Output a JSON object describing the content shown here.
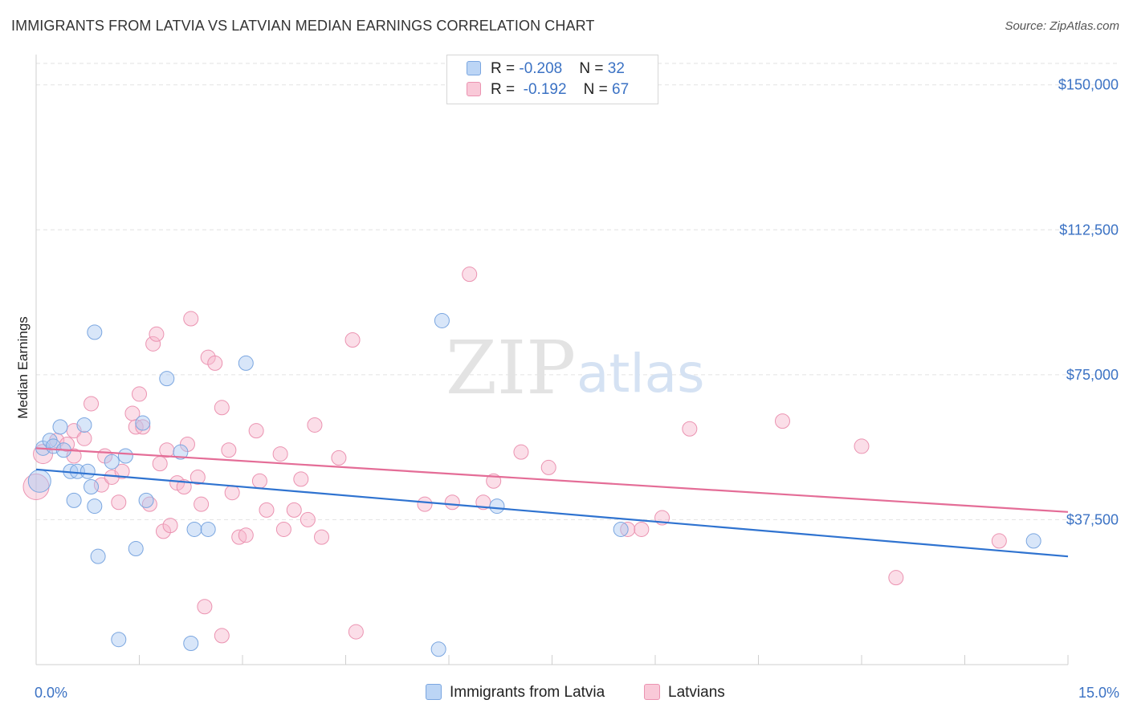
{
  "title": "IMMIGRANTS FROM LATVIA VS LATVIAN MEDIAN EARNINGS CORRELATION CHART",
  "source": "Source: ZipAtlas.com",
  "watermark": {
    "zip": "ZIP",
    "atlas": "atlas"
  },
  "colors": {
    "blue_fill": "#a9c8f2",
    "blue_stroke": "#7aa6e0",
    "blue_line": "#2f73d0",
    "pink_fill": "#f6b6cb",
    "pink_stroke": "#eb93b1",
    "pink_line": "#e46d97",
    "tick_text": "#3b72c4",
    "grid": "#e2e2e2"
  },
  "legend": {
    "rows": [
      {
        "r_label": "R = ",
        "r_value": "-0.208",
        "n_label": "N = ",
        "n_value": "32"
      },
      {
        "r_label": "R = ",
        "r_value": " -0.192",
        "n_label": "N = ",
        "n_value": "67"
      }
    ]
  },
  "bottom_legend": [
    {
      "label": "Immigrants from Latvia"
    },
    {
      "label": "Latvians"
    }
  ],
  "chart_data": {
    "type": "scatter",
    "title": "IMMIGRANTS FROM LATVIA VS LATVIAN MEDIAN EARNINGS CORRELATION CHART",
    "xlabel": "",
    "ylabel": "Median Earnings",
    "xlim": [
      0,
      15
    ],
    "ylim": [
      0,
      157000
    ],
    "x_tick_labels": [
      "0.0%",
      "15.0%"
    ],
    "y_ticks": [
      37500,
      75000,
      112500,
      150000
    ],
    "y_tick_labels": [
      "$37,500",
      "$75,000",
      "$112,500",
      "$150,000"
    ],
    "grid": true,
    "legend_position": "top-center",
    "series": [
      {
        "name": "Immigrants from Latvia",
        "trend": [
          [
            0,
            50500
          ],
          [
            15,
            28000
          ]
        ],
        "points": [
          [
            0.05,
            47500,
            14
          ],
          [
            0.1,
            56000,
            9
          ],
          [
            0.2,
            58000,
            9
          ],
          [
            0.25,
            56500,
            9
          ],
          [
            0.35,
            61500,
            9
          ],
          [
            0.4,
            55500,
            9
          ],
          [
            0.5,
            50000,
            9
          ],
          [
            0.55,
            42500,
            9
          ],
          [
            0.6,
            50000,
            9
          ],
          [
            0.75,
            50000,
            9
          ],
          [
            0.7,
            62000,
            9
          ],
          [
            0.85,
            86000,
            9
          ],
          [
            0.85,
            41000,
            9
          ],
          [
            0.8,
            46000,
            9
          ],
          [
            0.9,
            28000,
            9
          ],
          [
            1.1,
            52500,
            9
          ],
          [
            1.3,
            54000,
            9
          ],
          [
            1.6,
            42500,
            9
          ],
          [
            1.45,
            30000,
            9
          ],
          [
            1.55,
            62500,
            9
          ],
          [
            1.9,
            74000,
            9
          ],
          [
            2.1,
            55000,
            9
          ],
          [
            2.3,
            35000,
            9
          ],
          [
            2.5,
            35000,
            9
          ],
          [
            3.05,
            78000,
            9
          ],
          [
            1.2,
            6500,
            9
          ],
          [
            2.25,
            5500,
            9
          ],
          [
            5.9,
            89000,
            9
          ],
          [
            5.85,
            4000,
            9
          ],
          [
            6.7,
            41000,
            9
          ],
          [
            8.5,
            35000,
            9
          ],
          [
            14.5,
            32000,
            9
          ]
        ]
      },
      {
        "name": "Latvians",
        "trend": [
          [
            0,
            56000
          ],
          [
            15,
            39500
          ]
        ],
        "points": [
          [
            0.0,
            46000,
            16
          ],
          [
            0.1,
            54500,
            12
          ],
          [
            0.3,
            58000,
            9
          ],
          [
            0.45,
            57000,
            9
          ],
          [
            0.55,
            54000,
            9
          ],
          [
            0.55,
            60500,
            9
          ],
          [
            0.7,
            58500,
            9
          ],
          [
            0.8,
            67500,
            9
          ],
          [
            0.95,
            46500,
            9
          ],
          [
            1.0,
            54000,
            9
          ],
          [
            1.1,
            48500,
            9
          ],
          [
            1.2,
            42000,
            9
          ],
          [
            1.4,
            65000,
            9
          ],
          [
            1.45,
            61500,
            9
          ],
          [
            1.5,
            70000,
            9
          ],
          [
            1.55,
            61500,
            9
          ],
          [
            1.7,
            83000,
            9
          ],
          [
            1.85,
            34500,
            9
          ],
          [
            1.75,
            85500,
            9
          ],
          [
            1.65,
            41500,
            9
          ],
          [
            1.8,
            52000,
            9
          ],
          [
            1.9,
            55500,
            9
          ],
          [
            1.95,
            36000,
            9
          ],
          [
            2.05,
            47000,
            9
          ],
          [
            2.15,
            46000,
            9
          ],
          [
            2.2,
            57000,
            9
          ],
          [
            2.25,
            89500,
            9
          ],
          [
            2.4,
            41500,
            9
          ],
          [
            2.5,
            79500,
            9
          ],
          [
            2.6,
            78000,
            9
          ],
          [
            2.45,
            15000,
            9
          ],
          [
            2.7,
            66500,
            9
          ],
          [
            2.8,
            55500,
            9
          ],
          [
            2.85,
            44500,
            9
          ],
          [
            2.7,
            7500,
            9
          ],
          [
            2.95,
            33000,
            9
          ],
          [
            3.05,
            33500,
            9
          ],
          [
            3.2,
            60500,
            9
          ],
          [
            3.25,
            47500,
            9
          ],
          [
            3.35,
            40000,
            9
          ],
          [
            3.6,
            35000,
            9
          ],
          [
            3.75,
            40000,
            9
          ],
          [
            3.85,
            48000,
            9
          ],
          [
            3.95,
            37500,
            9
          ],
          [
            4.05,
            62000,
            9
          ],
          [
            4.15,
            33000,
            9
          ],
          [
            4.4,
            53500,
            9
          ],
          [
            4.6,
            84000,
            9
          ],
          [
            4.65,
            8500,
            9
          ],
          [
            5.65,
            41500,
            9
          ],
          [
            6.3,
            101000,
            9
          ],
          [
            6.5,
            42000,
            9
          ],
          [
            6.65,
            47500,
            9
          ],
          [
            7.05,
            55000,
            9
          ],
          [
            7.45,
            51000,
            9
          ],
          [
            8.6,
            35000,
            9
          ],
          [
            8.8,
            35000,
            9
          ],
          [
            9.1,
            38000,
            9
          ],
          [
            9.5,
            61000,
            9
          ],
          [
            10.85,
            63000,
            9
          ],
          [
            12.0,
            56500,
            9
          ],
          [
            12.5,
            22500,
            9
          ],
          [
            14.0,
            32000,
            9
          ],
          [
            6.05,
            42000,
            9
          ],
          [
            3.55,
            54500,
            9
          ],
          [
            2.35,
            48500,
            9
          ],
          [
            1.25,
            50000,
            9
          ]
        ]
      }
    ]
  }
}
